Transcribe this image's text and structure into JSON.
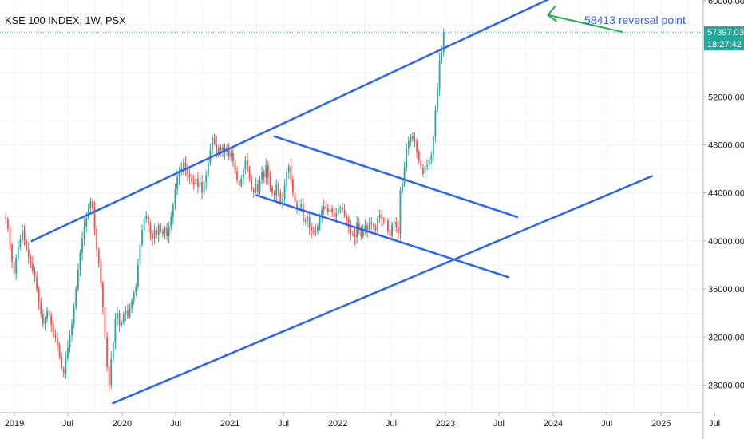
{
  "chart_data": {
    "type": "candlestick",
    "title": "KSE 100 INDEX, 1W, PSX",
    "symbol": "KSE 100 INDEX",
    "interval": "1W",
    "exchange": "PSX",
    "x_tick_labels": [
      "2019",
      "Jul",
      "2020",
      "Jul",
      "2021",
      "Jul",
      "2022",
      "Jul",
      "2023",
      "Jul",
      "2024",
      "Jul",
      "2025",
      "Jul"
    ],
    "y_tick_labels": [
      "60000.00",
      "52000.00",
      "48000.00",
      "44000.00",
      "40000.00",
      "36000.00",
      "32000.00",
      "28000.00"
    ],
    "ylim": [
      26500,
      60300
    ],
    "last_price": "57397.03",
    "countdown": "18:27:42",
    "last_price_value": 57397.03,
    "colors": {
      "up": "#26a69a",
      "down": "#ef5350",
      "channel": "#2962ff",
      "arrow": "#21b14b",
      "annotation": "#2962ff",
      "grid": "#f0f3fa",
      "price_tag": "#26a69a"
    },
    "series": [
      {
        "name": "KSE 100 INDEX",
        "close": [
          41800,
          41000,
          39700,
          38300,
          37300,
          38600,
          39500,
          40100,
          40900,
          40000,
          39300,
          38700,
          38100,
          37500,
          37000,
          36000,
          34900,
          33900,
          33100,
          33500,
          34200,
          33800,
          33000,
          32200,
          31900,
          31300,
          30400,
          29400,
          29000,
          30300,
          31100,
          32200,
          33100,
          34500,
          36000,
          37600,
          39000,
          40200,
          41200,
          41900,
          42700,
          43300,
          42800,
          41000,
          39300,
          38100,
          36500,
          34500,
          32000,
          29500,
          28000,
          30200,
          31500,
          33500,
          34000,
          33000,
          33200,
          33900,
          34200,
          33700,
          34400,
          35000,
          35700,
          36200,
          38000,
          39700,
          40900,
          41800,
          42100,
          41300,
          40600,
          40200,
          40900,
          40500,
          41300,
          40800,
          40600,
          41100,
          40400,
          41200,
          42000,
          43000,
          44300,
          45300,
          45800,
          46000,
          46500,
          46000,
          45600,
          45300,
          44900,
          44700,
          45200,
          44500,
          44900,
          44000,
          44900,
          45500,
          46500,
          47600,
          48600,
          48100,
          47300,
          47800,
          47500,
          47800,
          47400,
          47600,
          47000,
          47300,
          46600,
          45800,
          45100,
          44600,
          45200,
          46000,
          46700,
          45900,
          45200,
          44300,
          44100,
          44700,
          44100,
          45100,
          45700,
          45300,
          46300,
          45300,
          44500,
          44000,
          43800,
          44700,
          44000,
          43200,
          43500,
          44600,
          45700,
          46200,
          45100,
          44000,
          43200,
          42600,
          42800,
          43100,
          41600,
          41700,
          42000,
          41100,
          40800,
          40700,
          40800,
          41200,
          42100,
          42600,
          42900,
          42700,
          42400,
          42700,
          42400,
          42000,
          42300,
          42700,
          42800,
          42600,
          42100,
          41800,
          41100,
          40600,
          40500,
          40300,
          41500,
          41100,
          40400,
          40900,
          41300,
          40900,
          41500,
          41400,
          41200,
          40900,
          41900,
          42200,
          41800,
          41700,
          41700,
          40800,
          40400,
          41400,
          41600,
          41100,
          40600,
          44200,
          44800,
          46100,
          47700,
          48300,
          48700,
          48500,
          48300,
          47400,
          46800,
          46100,
          45600,
          46200,
          46300,
          46800,
          47100,
          48700,
          50900,
          52600,
          55000,
          55700,
          57400
        ]
      }
    ],
    "channels": [
      {
        "from": [
          "2019-03",
          40000
        ],
        "to": [
          "2024-01",
          60300
        ]
      },
      {
        "from": [
          "2019-12",
          26500
        ],
        "to": [
          "2024-12",
          45400
        ]
      },
      {
        "from": [
          "2021-06",
          48700
        ],
        "to": [
          "2023-09",
          42000
        ]
      },
      {
        "from": [
          "2021-04",
          43800
        ],
        "to": [
          "2023-08",
          37000
        ]
      }
    ],
    "annotation": {
      "text": "58413 reversal point",
      "target_value": 58413
    }
  }
}
